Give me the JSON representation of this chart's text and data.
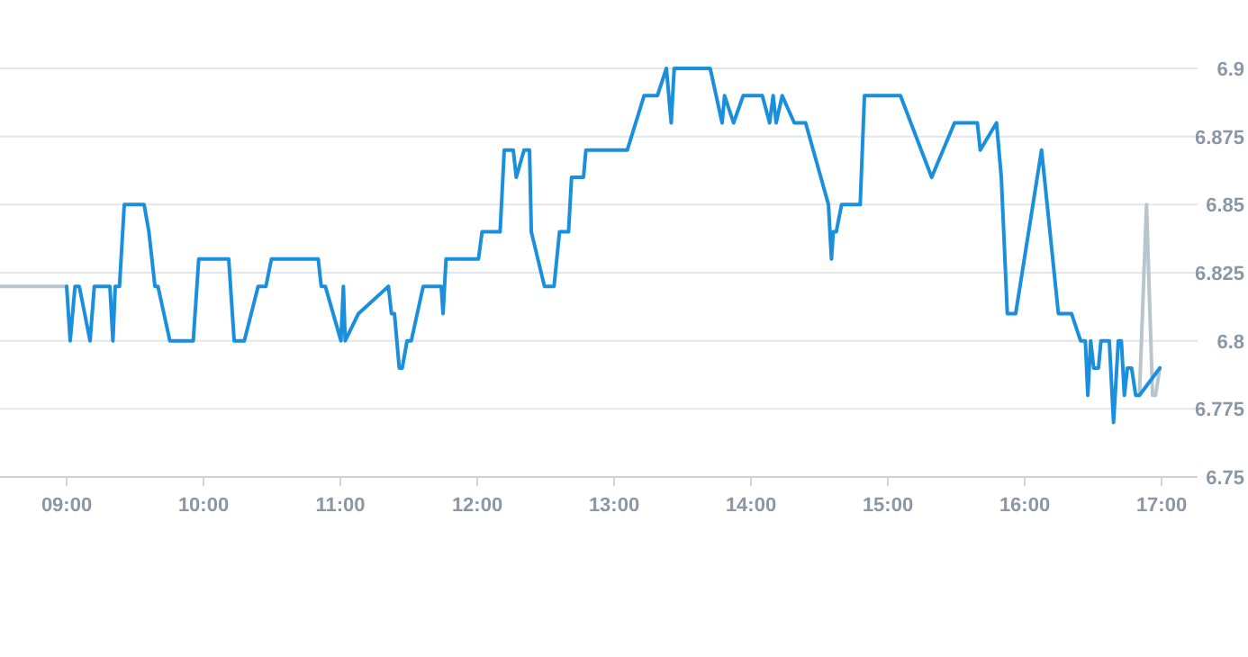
{
  "chart_data": {
    "type": "line",
    "xlim": [
      8.513,
      17.263
    ],
    "xticks": [
      {
        "value": 9,
        "label": "09:00"
      },
      {
        "value": 10,
        "label": "10:00"
      },
      {
        "value": 11,
        "label": "11:00"
      },
      {
        "value": 12,
        "label": "12:00"
      },
      {
        "value": 13,
        "label": "13:00"
      },
      {
        "value": 14,
        "label": "14:00"
      },
      {
        "value": 15,
        "label": "15:00"
      },
      {
        "value": 16,
        "label": "16:00"
      },
      {
        "value": 17,
        "label": "17:00"
      }
    ],
    "ylim": [
      6.75,
      6.9
    ],
    "yticks": [
      6.75,
      6.775,
      6.8,
      6.825,
      6.85,
      6.875,
      6.9
    ],
    "grid": "y",
    "marker": "none",
    "line_style": "solid",
    "series": [
      {
        "color": "#b9c5cd",
        "x": [
          8.513,
          9.0,
          12.0,
          16.838,
          16.89,
          16.934,
          16.956,
          16.987
        ],
        "values": [
          6.82,
          6.82,
          null,
          6.78,
          6.85,
          6.78,
          6.78,
          6.79
        ]
      },
      {
        "color": "#1a8fdd",
        "x": [
          9.0,
          9.026,
          9.061,
          9.092,
          9.171,
          9.202,
          9.316,
          9.338,
          9.355,
          9.386,
          9.421,
          9.566,
          9.601,
          9.645,
          9.667,
          9.754,
          9.925,
          9.965,
          10.184,
          10.224,
          10.298,
          10.399,
          10.456,
          10.496,
          10.838,
          10.86,
          10.89,
          11.004,
          11.022,
          11.035,
          11.132,
          11.351,
          11.373,
          11.395,
          11.43,
          11.452,
          11.487,
          11.518,
          11.605,
          11.737,
          11.75,
          11.772,
          12.009,
          12.035,
          12.167,
          12.197,
          12.263,
          12.285,
          12.342,
          12.382,
          12.395,
          12.491,
          12.561,
          12.601,
          12.667,
          12.689,
          12.776,
          12.794,
          13.096,
          13.219,
          13.316,
          13.382,
          13.417,
          13.439,
          13.702,
          13.789,
          13.807,
          13.873,
          13.943,
          14.083,
          14.136,
          14.162,
          14.184,
          14.228,
          14.316,
          14.399,
          14.566,
          14.588,
          14.601,
          14.623,
          14.662,
          14.798,
          14.829,
          15.092,
          15.32,
          15.487,
          15.654,
          15.675,
          15.794,
          15.829,
          15.873,
          15.934,
          16.123,
          16.246,
          16.342,
          16.408,
          16.443,
          16.461,
          16.482,
          16.504,
          16.539,
          16.557,
          16.618,
          16.649,
          16.684,
          16.706,
          16.728,
          16.75,
          16.781,
          16.811,
          16.838,
          16.987
        ],
        "values": [
          6.82,
          6.8,
          6.82,
          6.82,
          6.8,
          6.82,
          6.82,
          6.8,
          6.82,
          6.82,
          6.85,
          6.85,
          6.84,
          6.82,
          6.82,
          6.8,
          6.8,
          6.83,
          6.83,
          6.8,
          6.8,
          6.82,
          6.82,
          6.83,
          6.83,
          6.82,
          6.82,
          6.8,
          6.82,
          6.8,
          6.81,
          6.82,
          6.81,
          6.81,
          6.79,
          6.79,
          6.8,
          6.8,
          6.82,
          6.82,
          6.81,
          6.83,
          6.83,
          6.84,
          6.84,
          6.87,
          6.87,
          6.86,
          6.87,
          6.87,
          6.84,
          6.82,
          6.82,
          6.84,
          6.84,
          6.86,
          6.86,
          6.87,
          6.87,
          6.89,
          6.89,
          6.9,
          6.88,
          6.9,
          6.9,
          6.88,
          6.89,
          6.88,
          6.89,
          6.89,
          6.88,
          6.89,
          6.88,
          6.89,
          6.88,
          6.88,
          6.85,
          6.83,
          6.84,
          6.84,
          6.85,
          6.85,
          6.89,
          6.89,
          6.86,
          6.88,
          6.88,
          6.87,
          6.88,
          6.86,
          6.81,
          6.81,
          6.87,
          6.81,
          6.81,
          6.8,
          6.8,
          6.78,
          6.8,
          6.79,
          6.79,
          6.8,
          6.8,
          6.77,
          6.8,
          6.8,
          6.78,
          6.79,
          6.79,
          6.78,
          6.78,
          6.79
        ]
      }
    ]
  }
}
